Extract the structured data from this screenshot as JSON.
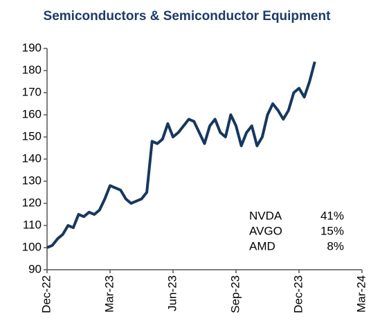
{
  "chart_data": {
    "type": "line",
    "title": "Semiconductors & Semiconductor Equipment",
    "x": [
      0,
      0.25,
      0.5,
      0.75,
      1,
      1.25,
      1.5,
      1.75,
      2,
      2.25,
      2.5,
      2.75,
      3,
      3.25,
      3.5,
      3.75,
      4,
      4.25,
      4.5,
      4.75,
      5,
      5.25,
      5.5,
      5.75,
      6,
      6.25,
      6.5,
      6.75,
      7,
      7.25,
      7.5,
      7.75,
      8,
      8.25,
      8.5,
      8.75,
      9,
      9.25,
      9.5,
      9.75,
      10,
      10.25,
      10.5,
      10.75,
      11,
      11.25,
      11.5,
      11.75,
      12,
      12.25,
      12.5,
      12.75
    ],
    "series": [
      {
        "name": "Semiconductors & Semiconductor Equipment",
        "color": "#17375e",
        "values": [
          100,
          101,
          104,
          106,
          110,
          109,
          115,
          114,
          116,
          115,
          117,
          122,
          128,
          127,
          126,
          122,
          120,
          121,
          122,
          125,
          148,
          147,
          149,
          156,
          150,
          152,
          155,
          158,
          157,
          152,
          147,
          155,
          158,
          152,
          150,
          160,
          155,
          146,
          152,
          155,
          146,
          150,
          160,
          165,
          162,
          158,
          162,
          170,
          172,
          168,
          175,
          184
        ]
      }
    ],
    "xlim": [
      0,
      15
    ],
    "xticks": [
      {
        "value": 0,
        "label": "Dec-22"
      },
      {
        "value": 3,
        "label": "Mar-23"
      },
      {
        "value": 6,
        "label": "Jun-23"
      },
      {
        "value": 9,
        "label": "Sep-23"
      },
      {
        "value": 12,
        "label": "Dec-23"
      },
      {
        "value": 15,
        "label": "Mar-24"
      }
    ],
    "ylim": [
      90,
      190
    ],
    "yticks": [
      90,
      100,
      110,
      120,
      130,
      140,
      150,
      160,
      170,
      180,
      190
    ],
    "grid": false,
    "annotation": {
      "names": [
        "NVDA",
        "AVGO",
        "AMD"
      ],
      "values": [
        41,
        15,
        8
      ],
      "value_labels": [
        "41%",
        "15%",
        "8%"
      ]
    }
  }
}
